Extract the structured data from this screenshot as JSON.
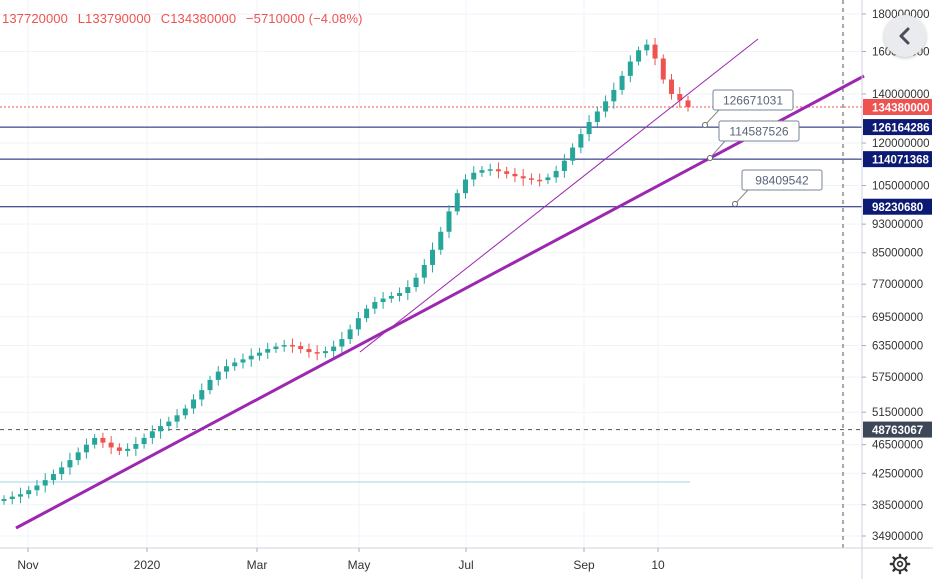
{
  "ohlc": {
    "open": "137720000",
    "low": "L133790000",
    "close": "C134380000",
    "change": "−5710000 (−4.08%)"
  },
  "icons": {
    "back": "chevron-left-icon",
    "settings": "gear-icon"
  },
  "colors": {
    "up": "#26a69a",
    "down": "#ef5350",
    "trendline": "#9c27b0",
    "level_line": "#0d1a73",
    "price_badge": "#ef5350",
    "level_badge": "#0d1a73",
    "crosshair_badge": "#3d4758"
  },
  "chart_data": {
    "type": "candlestick",
    "x_ticks": [
      "Nov",
      "2020",
      "Mar",
      "May",
      "Jul",
      "Sep",
      "10"
    ],
    "y_ticks": [
      180000000,
      160000000,
      140000000,
      120000000,
      105000000,
      93000000,
      85000000,
      77000000,
      69500000,
      63500000,
      57500000,
      51500000,
      46500000,
      42500000,
      38500000,
      34900000
    ],
    "y_tick_labels": [
      "180000000",
      "160000000",
      "140000000",
      "120000000",
      "105000000",
      "93000000",
      "85000000",
      "77000000",
      "69500000",
      "63500000",
      "57500000",
      "51500000",
      "46500000",
      "42500000",
      "38500000",
      "34900000"
    ],
    "log_scale": true,
    "ylim": [
      33000000,
      190000000
    ],
    "grid": true,
    "last_price": {
      "value": 134380000,
      "label": "134380000"
    },
    "crosshair_price": {
      "value": 48763067,
      "label": "48763067"
    },
    "horizontal_levels": [
      {
        "value": 126164286,
        "label": "126164286"
      },
      {
        "value": 114071368,
        "label": "114071368"
      },
      {
        "value": 98230680,
        "label": "98230680"
      }
    ],
    "level_callouts": [
      {
        "label": "126671031"
      },
      {
        "label": "114587526"
      },
      {
        "label": "98409542"
      }
    ],
    "trendlines": [
      {
        "name": "",
        "width": "thin"
      },
      {
        "name": "",
        "width": "thick"
      }
    ],
    "series": [
      {
        "name": "",
        "values": [
          39200000,
          39500000,
          39800000,
          40300000,
          40900000,
          41600000,
          42400000,
          43300000,
          44300000,
          45400000,
          46500000,
          47500000,
          46800000,
          46100000,
          45600000,
          45900000,
          46600000,
          47500000,
          48500000,
          49300000,
          50000000,
          51000000,
          52100000,
          53600000,
          55200000,
          57000000,
          58500000,
          59500000,
          60200000,
          60800000,
          61500000,
          62100000,
          62800000,
          63300000,
          63600000,
          63400000,
          62800000,
          62200000,
          62000000,
          62400000,
          63300000,
          64800000,
          66800000,
          69200000,
          71300000,
          72800000,
          73600000,
          74200000,
          74900000,
          76300000,
          78600000,
          81800000,
          85800000,
          90800000,
          96800000,
          102500000,
          107000000,
          109300000,
          110200000,
          110500000,
          109800000,
          108900000,
          108100000,
          107400000,
          106900000,
          106800000,
          107700000,
          109900000,
          113500000,
          118300000,
          123400000,
          128200000,
          132500000,
          136800000,
          141800000,
          148200000,
          155000000,
          160600000,
          163500000,
          156500000,
          146500000,
          140000000,
          137200000,
          134380000
        ]
      }
    ]
  }
}
